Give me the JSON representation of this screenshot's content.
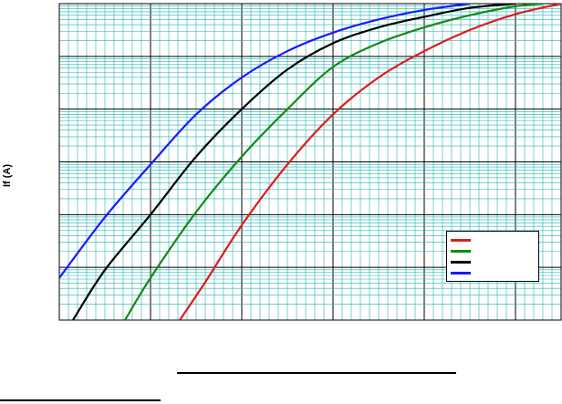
{
  "chart_data": {
    "type": "line",
    "title": "",
    "xlabel": "",
    "ylabel": "If (A)",
    "x_scale": "linear",
    "y_scale": "log",
    "xlim": [
      0,
      5.5
    ],
    "ylim_decades": 6,
    "grid": true,
    "legend_position": "bottom-right",
    "series": [
      {
        "name": "",
        "color": "#e01b1b",
        "points": [
          [
            1.32,
            0.0
          ],
          [
            1.6,
            0.72
          ],
          [
            2.0,
            1.8
          ],
          [
            2.5,
            2.95
          ],
          [
            3.0,
            3.9
          ],
          [
            3.5,
            4.6
          ],
          [
            4.0,
            5.1
          ],
          [
            4.5,
            5.5
          ],
          [
            5.0,
            5.8
          ],
          [
            5.5,
            6.0
          ]
        ]
      },
      {
        "name": "",
        "color": "#138a13",
        "points": [
          [
            0.72,
            0.0
          ],
          [
            1.0,
            0.8
          ],
          [
            1.5,
            2.05
          ],
          [
            2.0,
            3.1
          ],
          [
            2.5,
            4.0
          ],
          [
            3.0,
            4.8
          ],
          [
            3.5,
            5.25
          ],
          [
            4.0,
            5.55
          ],
          [
            4.5,
            5.78
          ],
          [
            5.0,
            5.95
          ],
          [
            5.3,
            6.0
          ]
        ]
      },
      {
        "name": "",
        "color": "#000000",
        "points": [
          [
            0.15,
            0.0
          ],
          [
            0.5,
            0.95
          ],
          [
            1.0,
            2.0
          ],
          [
            1.5,
            3.1
          ],
          [
            2.0,
            4.0
          ],
          [
            2.5,
            4.75
          ],
          [
            3.0,
            5.25
          ],
          [
            3.5,
            5.55
          ],
          [
            4.0,
            5.75
          ],
          [
            4.5,
            5.92
          ],
          [
            5.0,
            6.0
          ]
        ]
      },
      {
        "name": "",
        "color": "#1a1aff",
        "points": [
          [
            0.0,
            0.8
          ],
          [
            0.5,
            1.95
          ],
          [
            1.0,
            2.95
          ],
          [
            1.5,
            3.9
          ],
          [
            2.0,
            4.6
          ],
          [
            2.5,
            5.1
          ],
          [
            3.0,
            5.45
          ],
          [
            3.5,
            5.7
          ],
          [
            4.0,
            5.88
          ],
          [
            4.5,
            6.0
          ]
        ]
      }
    ]
  },
  "colors": {
    "grid_major": "#000000",
    "grid_minor": "#22b3b3",
    "background": "#ffffff"
  }
}
